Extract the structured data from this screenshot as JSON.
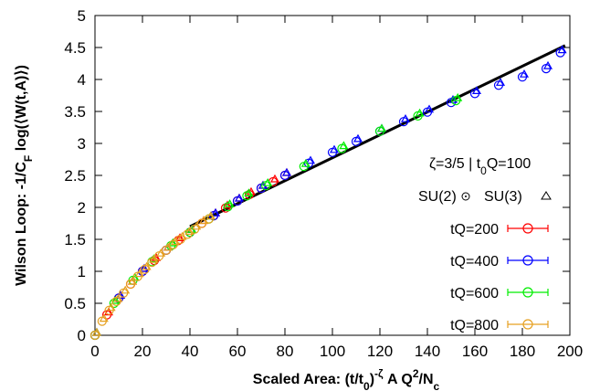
{
  "chart_data": {
    "type": "scatter",
    "xlim": [
      0,
      200
    ],
    "ylim": [
      0,
      5
    ],
    "x_ticks": [
      0,
      20,
      40,
      60,
      80,
      100,
      120,
      140,
      160,
      180,
      200
    ],
    "y_ticks": [
      0,
      0.5,
      1,
      1.5,
      2,
      2.5,
      3,
      3.5,
      4,
      4.5,
      5
    ],
    "x_tick_labels": [
      "0",
      "20",
      "40",
      "60",
      "80",
      "100",
      "120",
      "140",
      "160",
      "180",
      "200"
    ],
    "y_tick_labels": [
      "0",
      "0.5",
      "1",
      "1.5",
      "2",
      "2.5",
      "3",
      "3.5",
      "4",
      "4.5",
      "5"
    ],
    "xlabel": "Scaled Area: (t/t0)^(-ζ) A Q²/Nc",
    "ylabel": "Wilson Loop: -1/CF log(⟨W(t,A)⟩)",
    "annotation": "ζ=3/5 | t₀Q=100",
    "grid": false,
    "legend_placement": "right",
    "marker_legend": [
      {
        "name": "SU(2)",
        "marker": "circle"
      },
      {
        "name": "SU(3)",
        "marker": "triangle"
      }
    ],
    "series": [
      {
        "name": "tQ=200",
        "color": "#ff0000",
        "x": [
          0,
          5,
          10,
          15,
          20,
          25,
          30,
          35,
          40,
          45,
          50,
          55,
          60,
          65,
          70,
          75,
          80
        ],
        "y": [
          0,
          0.32,
          0.58,
          0.8,
          1.0,
          1.17,
          1.33,
          1.48,
          1.61,
          1.75,
          1.87,
          1.99,
          2.1,
          2.2,
          2.3,
          2.4,
          2.5
        ]
      },
      {
        "name": "tQ=400",
        "color": "#0000ff",
        "x": [
          0,
          10,
          20,
          30,
          40,
          50,
          60,
          70,
          80,
          90,
          100,
          110,
          120,
          130,
          140,
          150,
          160,
          170,
          180,
          190,
          196
        ],
        "y": [
          0,
          0.58,
          1.0,
          1.33,
          1.61,
          1.87,
          2.1,
          2.3,
          2.5,
          2.69,
          2.86,
          3.03,
          3.19,
          3.34,
          3.49,
          3.64,
          3.78,
          3.91,
          4.04,
          4.17,
          4.42
        ]
      },
      {
        "name": "tQ=600",
        "color": "#00ee00",
        "x": [
          0,
          8,
          16,
          24,
          32,
          40,
          48,
          56,
          64,
          72,
          88,
          104,
          120,
          136,
          152
        ],
        "y": [
          0,
          0.5,
          0.86,
          1.15,
          1.4,
          1.61,
          1.82,
          2.01,
          2.18,
          2.34,
          2.64,
          2.92,
          3.19,
          3.43,
          3.67
        ]
      },
      {
        "name": "tQ=800",
        "color": "#e6a020",
        "x": [
          0,
          3,
          6,
          9,
          12,
          15,
          18,
          21,
          24,
          27,
          30,
          33,
          36,
          39,
          42,
          45,
          48
        ],
        "y": [
          0,
          0.22,
          0.39,
          0.53,
          0.66,
          0.8,
          0.92,
          1.03,
          1.14,
          1.24,
          1.33,
          1.42,
          1.5,
          1.58,
          1.66,
          1.75,
          1.82
        ]
      }
    ],
    "reference_line": {
      "x": [
        40,
        198
      ],
      "y": [
        1.7,
        4.53
      ]
    }
  }
}
